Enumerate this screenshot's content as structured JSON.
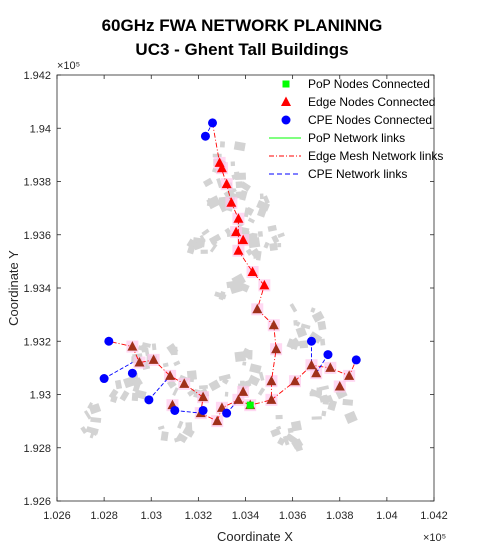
{
  "chart_data": {
    "type": "scatter",
    "title_line1": "60GHz FWA NETWORK PLANINNG",
    "title_line2": "UC3 - Ghent Tall Buildings",
    "xlabel": "Coordinate X",
    "ylabel": "Coordinate Y",
    "x_exponent": "×10⁵",
    "y_exponent": "×10⁵",
    "xlim": [
      1.026,
      1.042
    ],
    "ylim": [
      1.926,
      1.942
    ],
    "xticks": [
      "1.026",
      "1.028",
      "1.03",
      "1.032",
      "1.034",
      "1.036",
      "1.038",
      "1.04",
      "1.042"
    ],
    "yticks": [
      "1.926",
      "1.928",
      "1.93",
      "1.932",
      "1.934",
      "1.936",
      "1.938",
      "1.94",
      "1.942"
    ],
    "legend_position": "top-right",
    "legend": [
      {
        "label": "PoP Nodes Connected",
        "kind": "square",
        "color": "#00ff00"
      },
      {
        "label": "Edge Nodes Connected",
        "kind": "triangle",
        "color": "#ff0000"
      },
      {
        "label": "CPE Nodes Connected",
        "kind": "circle",
        "color": "#0000ff"
      },
      {
        "label": "PoP Network links",
        "kind": "solid",
        "color": "#00ff00"
      },
      {
        "label": "Edge Mesh Network links",
        "kind": "dashdot",
        "color": "#ff0000"
      },
      {
        "label": "CPE Network links",
        "kind": "dashed",
        "color": "#0000ff"
      }
    ],
    "colors": {
      "pop": "#00ff00",
      "edge": "#a0301a",
      "edge_top": "#ff0000",
      "cpe": "#0000ff",
      "buildings": "#d3d3d3",
      "coverage": "#ffc8ec"
    },
    "series": [
      {
        "name": "PoP Nodes Connected",
        "points": [
          [
            1.0342,
            1.9296
          ]
        ]
      },
      {
        "name": "Edge Nodes Connected",
        "points": [
          [
            1.0329,
            1.9387
          ],
          [
            1.033,
            1.9385
          ],
          [
            1.0332,
            1.9379
          ],
          [
            1.0334,
            1.9372
          ],
          [
            1.0337,
            1.9366
          ],
          [
            1.0336,
            1.9361
          ],
          [
            1.0339,
            1.9358
          ],
          [
            1.0337,
            1.9354
          ],
          [
            1.0343,
            1.9346
          ],
          [
            1.0348,
            1.9341
          ],
          [
            1.0345,
            1.9332
          ],
          [
            1.0352,
            1.9326
          ],
          [
            1.0353,
            1.9317
          ],
          [
            1.0351,
            1.9305
          ],
          [
            1.0351,
            1.9298
          ],
          [
            1.0342,
            1.9296
          ],
          [
            1.0339,
            1.9301
          ],
          [
            1.0337,
            1.9298
          ],
          [
            1.033,
            1.9295
          ],
          [
            1.0328,
            1.929
          ],
          [
            1.0322,
            1.9299
          ],
          [
            1.0321,
            1.9293
          ],
          [
            1.0314,
            1.9304
          ],
          [
            1.0308,
            1.9307
          ],
          [
            1.0301,
            1.9313
          ],
          [
            1.0295,
            1.9312
          ],
          [
            1.0292,
            1.9318
          ],
          [
            1.0309,
            1.9296
          ],
          [
            1.0361,
            1.9305
          ],
          [
            1.0368,
            1.9311
          ],
          [
            1.037,
            1.9308
          ],
          [
            1.0376,
            1.931
          ],
          [
            1.038,
            1.9303
          ],
          [
            1.0384,
            1.9307
          ]
        ]
      },
      {
        "name": "CPE Nodes Connected",
        "points": [
          [
            1.0323,
            1.9397
          ],
          [
            1.0326,
            1.9402
          ],
          [
            1.0282,
            1.932
          ],
          [
            1.028,
            1.9306
          ],
          [
            1.0292,
            1.9308
          ],
          [
            1.0299,
            1.9298
          ],
          [
            1.031,
            1.9294
          ],
          [
            1.0322,
            1.9294
          ],
          [
            1.0332,
            1.9293
          ],
          [
            1.0368,
            1.932
          ],
          [
            1.0375,
            1.9315
          ],
          [
            1.0387,
            1.9313
          ]
        ]
      }
    ],
    "edge_path": [
      [
        1.0326,
        1.9402
      ],
      [
        1.0329,
        1.9387
      ],
      [
        1.0332,
        1.9379
      ],
      [
        1.0334,
        1.9372
      ],
      [
        1.0337,
        1.9366
      ],
      [
        1.0337,
        1.9354
      ],
      [
        1.0343,
        1.9346
      ],
      [
        1.0348,
        1.9341
      ],
      [
        1.0345,
        1.9332
      ],
      [
        1.0352,
        1.9326
      ],
      [
        1.0353,
        1.9317
      ],
      [
        1.0351,
        1.9305
      ],
      [
        1.0351,
        1.9298
      ],
      [
        1.0342,
        1.9296
      ],
      [
        1.0337,
        1.9298
      ],
      [
        1.033,
        1.9295
      ],
      [
        1.0328,
        1.929
      ],
      [
        1.0321,
        1.9293
      ],
      [
        1.0322,
        1.9299
      ],
      [
        1.0314,
        1.9304
      ],
      [
        1.0308,
        1.9307
      ],
      [
        1.0301,
        1.9313
      ],
      [
        1.0295,
        1.9312
      ],
      [
        1.0292,
        1.9318
      ],
      [
        1.0282,
        1.932
      ]
    ],
    "edge_path2": [
      [
        1.0351,
        1.9298
      ],
      [
        1.0361,
        1.9305
      ],
      [
        1.0368,
        1.9311
      ],
      [
        1.0376,
        1.931
      ],
      [
        1.0384,
        1.9307
      ],
      [
        1.0387,
        1.9313
      ]
    ],
    "cpe_links": [
      [
        [
          1.028,
          1.9306
        ],
        [
          1.0292,
          1.9312
        ]
      ],
      [
        [
          1.0299,
          1.9298
        ],
        [
          1.0308,
          1.9307
        ]
      ],
      [
        [
          1.031,
          1.9294
        ],
        [
          1.0321,
          1.9293
        ]
      ],
      [
        [
          1.0332,
          1.9293
        ],
        [
          1.0337,
          1.9298
        ]
      ],
      [
        [
          1.0368,
          1.932
        ],
        [
          1.0368,
          1.9311
        ]
      ],
      [
        [
          1.0375,
          1.9315
        ],
        [
          1.037,
          1.9308
        ]
      ],
      [
        [
          1.0323,
          1.9397
        ],
        [
          1.0326,
          1.9402
        ]
      ]
    ]
  }
}
